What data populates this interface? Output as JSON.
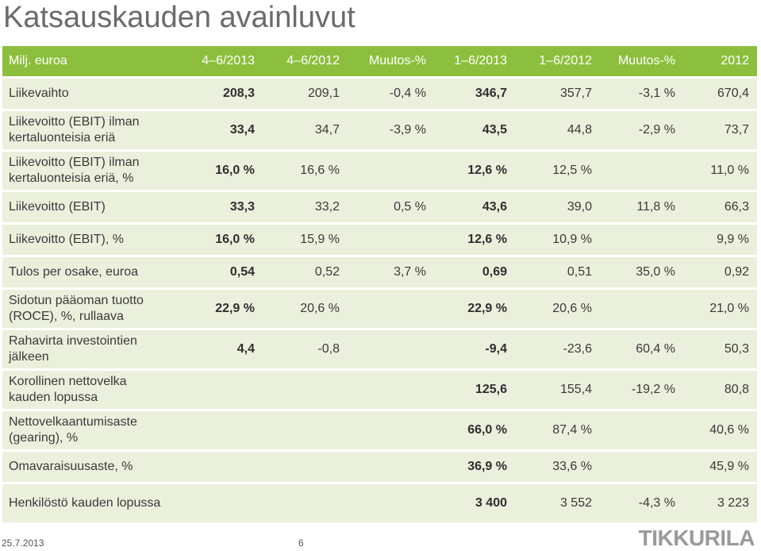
{
  "title": "Katsauskauden avainluvut",
  "table": {
    "headers": [
      "Milj. euroa",
      "4–6/2013",
      "4–6/2012",
      "Muutos-%",
      "1–6/2013",
      "1–6/2012",
      "Muutos-%",
      "2012"
    ],
    "rows": [
      {
        "label": "Liikevaihto",
        "cells": [
          "208,3",
          "209,1",
          "-0,4 %",
          "346,7",
          "357,7",
          "-3,1 %",
          "670,4"
        ]
      },
      {
        "label": "Liikevoitto (EBIT) ilman kertaluonteisia eriä",
        "cells": [
          "33,4",
          "34,7",
          "-3,9 %",
          "43,5",
          "44,8",
          "-2,9 %",
          "73,7"
        ]
      },
      {
        "label": "Liikevoitto (EBIT) ilman kertaluonteisia eriä, %",
        "cells": [
          "16,0 %",
          "16,6 %",
          "",
          "12,6 %",
          "12,5 %",
          "",
          "11,0 %"
        ]
      },
      {
        "label": "Liikevoitto (EBIT)",
        "cells": [
          "33,3",
          "33,2",
          "0,5 %",
          "43,6",
          "39,0",
          "11,8 %",
          "66,3"
        ]
      },
      {
        "label": "Liikevoitto (EBIT), %",
        "cells": [
          "16,0 %",
          "15,9 %",
          "",
          "12,6 %",
          "10,9 %",
          "",
          "9,9 %"
        ]
      },
      {
        "label": "Tulos per osake, euroa",
        "cells": [
          "0,54",
          "0,52",
          "3,7 %",
          "0,69",
          "0,51",
          "35,0 %",
          "0,92"
        ]
      },
      {
        "label": "Sidotun pääoman tuotto (ROCE), %, rullaava",
        "cells": [
          "22,9 %",
          "20,6 %",
          "",
          "22,9 %",
          "20,6 %",
          "",
          "21,0 %"
        ]
      },
      {
        "label": "Rahavirta investointien jälkeen",
        "cells": [
          "4,4",
          "-0,8",
          "",
          "-9,4",
          "-23,6",
          "60,4 %",
          "50,3"
        ]
      },
      {
        "label": "Korollinen nettovelka kauden lopussa",
        "cells": [
          "",
          "",
          "",
          "125,6",
          "155,4",
          "-19,2 %",
          "80,8"
        ]
      },
      {
        "label": "Nettovelkaantumisaste (gearing), %",
        "cells": [
          "",
          "",
          "",
          "66,0 %",
          "87,4 %",
          "",
          "40,6 %"
        ]
      },
      {
        "label": "Omavaraisuusaste, %",
        "cells": [
          "",
          "",
          "",
          "36,9 %",
          "33,6 %",
          "",
          "45,9 %"
        ]
      },
      {
        "label": "Henkilöstö kauden lopussa",
        "cells": [
          "",
          "",
          "",
          "3 400",
          "3 552",
          "-4,3 %",
          "3 223"
        ]
      }
    ]
  },
  "footer": {
    "date": "25.7.2013",
    "page": "6",
    "logo": "TIKKURILA"
  },
  "colors": {
    "header_bg": "#8cbf3d",
    "row_bg": "#ebf0dc",
    "title": "#6b6b6b"
  }
}
